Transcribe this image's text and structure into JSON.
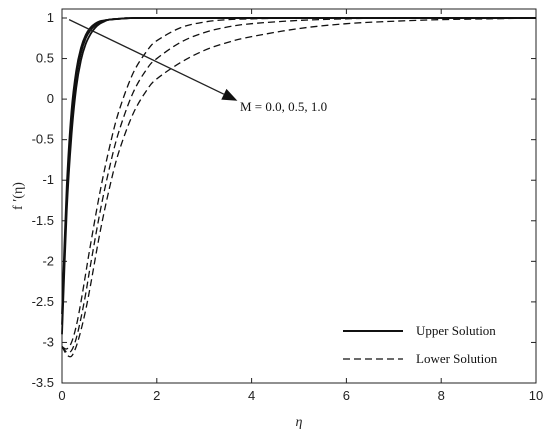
{
  "chart_data": {
    "type": "line",
    "xlabel": "η",
    "ylabel": "f ′(η)",
    "xlim": [
      0,
      10
    ],
    "ylim": [
      -3.5,
      1.05
    ],
    "xticks": [
      0,
      2,
      4,
      6,
      8,
      10
    ],
    "yticks": [
      1,
      0.5,
      0,
      -0.5,
      -1,
      -1.5,
      -2,
      -2.5,
      -3,
      -3.5
    ],
    "grid": false,
    "legend_position": "bottom-right",
    "legend": [
      {
        "label": "Upper Solution",
        "style": "solid"
      },
      {
        "label": "Lower Solution",
        "style": "dashed"
      }
    ],
    "annotation": {
      "text": "M = 0.0, 0.5, 1.0",
      "arrow_from": [
        0.15,
        0.98
      ],
      "arrow_to": [
        3.7,
        -0.02
      ]
    },
    "series": [
      {
        "solution": "upper",
        "M": 0.0,
        "style": "solid",
        "x": [
          0,
          0.1,
          0.2,
          0.3,
          0.4,
          0.5,
          0.6,
          0.7,
          0.8,
          0.9,
          1.0,
          1.2,
          1.5,
          2,
          3,
          10
        ],
        "y": [
          -2.65,
          -1.08,
          -0.15,
          0.35,
          0.63,
          0.79,
          0.88,
          0.93,
          0.96,
          0.97,
          0.98,
          0.99,
          1.0,
          1.0,
          1.0,
          1.0
        ]
      },
      {
        "solution": "upper",
        "M": 0.5,
        "style": "solid",
        "x": [
          0,
          0.1,
          0.2,
          0.3,
          0.4,
          0.5,
          0.6,
          0.7,
          0.8,
          0.9,
          1.0,
          1.2,
          1.5,
          2,
          3,
          10
        ],
        "y": [
          -2.78,
          -1.22,
          -0.28,
          0.27,
          0.57,
          0.75,
          0.85,
          0.91,
          0.95,
          0.97,
          0.98,
          0.99,
          1.0,
          1.0,
          1.0,
          1.0
        ]
      },
      {
        "solution": "upper",
        "M": 1.0,
        "style": "solid",
        "x": [
          0,
          0.1,
          0.2,
          0.3,
          0.4,
          0.5,
          0.6,
          0.7,
          0.8,
          0.9,
          1.0,
          1.2,
          1.5,
          2,
          3,
          10
        ],
        "y": [
          -2.9,
          -1.38,
          -0.45,
          0.14,
          0.48,
          0.68,
          0.8,
          0.88,
          0.93,
          0.96,
          0.98,
          0.99,
          1.0,
          1.0,
          1.0,
          1.0
        ]
      },
      {
        "solution": "lower",
        "M": 0.0,
        "style": "dashed",
        "x": [
          0,
          0.1,
          0.2,
          0.3,
          0.4,
          0.5,
          0.6,
          0.8,
          1.0,
          1.2,
          1.5,
          1.8,
          2.0,
          2.5,
          3.0,
          3.5,
          4.0,
          5.0,
          6.0,
          7.0,
          10
        ],
        "y": [
          -3.05,
          -3.08,
          -3.0,
          -2.8,
          -2.5,
          -2.15,
          -1.8,
          -1.15,
          -0.6,
          -0.15,
          0.32,
          0.6,
          0.72,
          0.88,
          0.95,
          0.98,
          0.99,
          1.0,
          1.0,
          1.0,
          1.0
        ]
      },
      {
        "solution": "lower",
        "M": 0.5,
        "style": "dashed",
        "x": [
          0,
          0.1,
          0.2,
          0.3,
          0.4,
          0.5,
          0.6,
          0.8,
          1.0,
          1.2,
          1.5,
          1.8,
          2.0,
          2.5,
          3.0,
          3.5,
          4.0,
          5.0,
          6.0,
          7.0,
          10
        ],
        "y": [
          -3.05,
          -3.12,
          -3.1,
          -2.95,
          -2.7,
          -2.4,
          -2.05,
          -1.4,
          -0.85,
          -0.4,
          0.08,
          0.38,
          0.5,
          0.7,
          0.82,
          0.89,
          0.93,
          0.97,
          0.99,
          1.0,
          1.0
        ]
      },
      {
        "solution": "lower",
        "M": 1.0,
        "style": "dashed",
        "x": [
          0,
          0.1,
          0.2,
          0.3,
          0.4,
          0.5,
          0.6,
          0.8,
          1.0,
          1.2,
          1.5,
          1.8,
          2.0,
          2.5,
          3.0,
          3.5,
          4.0,
          5.0,
          6.0,
          7.0,
          8.0,
          9.0,
          10
        ],
        "y": [
          -3.05,
          -3.15,
          -3.17,
          -3.05,
          -2.85,
          -2.6,
          -2.3,
          -1.65,
          -1.1,
          -0.65,
          -0.18,
          0.12,
          0.25,
          0.45,
          0.6,
          0.7,
          0.77,
          0.87,
          0.93,
          0.96,
          0.98,
          0.99,
          1.0
        ]
      }
    ]
  }
}
